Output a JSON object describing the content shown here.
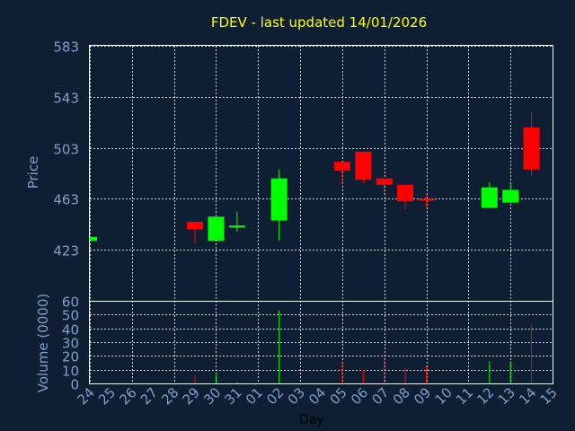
{
  "chart_data": {
    "type": "candlestick",
    "title": "FDEV - last updated 14/01/2026",
    "xlabel": "Day",
    "ylabel_price": "Price",
    "ylabel_volume": "Volume (0000)",
    "days": [
      "24",
      "25",
      "26",
      "27",
      "28",
      "29",
      "30",
      "31",
      "01",
      "02",
      "03",
      "04",
      "05",
      "06",
      "07",
      "08",
      "09",
      "10",
      "11",
      "12",
      "13",
      "14",
      "15"
    ],
    "price_ylim": [
      383,
      583
    ],
    "price_ticks": [
      423,
      463,
      503,
      543,
      583
    ],
    "volume_ylim": [
      0,
      60
    ],
    "volume_ticks": [
      0,
      10,
      20,
      30,
      40,
      50,
      60
    ],
    "grid": true,
    "colors": {
      "up": "#00ff00",
      "down": "#ff0000",
      "grid": "#ffffff",
      "title": "#ffff00",
      "axis_text": "#7f9fc8",
      "background": "#0f1f33"
    },
    "candles": [
      {
        "day": "24",
        "open": 430,
        "close": 433,
        "high": 433,
        "low": 430,
        "volume": 0
      },
      {
        "day": "29",
        "open": 445,
        "close": 439,
        "high": 445,
        "low": 428,
        "volume": 6
      },
      {
        "day": "30",
        "open": 430,
        "close": 449,
        "high": 449,
        "low": 430,
        "volume": 6
      },
      {
        "day": "31",
        "open": 441,
        "close": 442,
        "high": 453,
        "low": 437,
        "volume": 1
      },
      {
        "day": "02",
        "open": 446,
        "close": 479,
        "high": 486,
        "low": 430,
        "volume": 53
      },
      {
        "day": "05",
        "open": 492,
        "close": 485,
        "high": 492,
        "low": 474,
        "volume": 16
      },
      {
        "day": "06",
        "open": 500,
        "close": 478,
        "high": 500,
        "low": 475,
        "volume": 10
      },
      {
        "day": "07",
        "open": 479,
        "close": 474,
        "high": 479,
        "low": 466,
        "volume": 21
      },
      {
        "day": "08",
        "open": 474,
        "close": 461,
        "high": 474,
        "low": 455,
        "volume": 11
      },
      {
        "day": "09",
        "open": 463,
        "close": 462,
        "high": 466,
        "low": 456,
        "volume": 13
      },
      {
        "day": "12",
        "open": 456,
        "close": 472,
        "high": 476,
        "low": 456,
        "volume": 16
      },
      {
        "day": "13",
        "open": 460,
        "close": 470,
        "high": 476,
        "low": 460,
        "volume": 16
      },
      {
        "day": "14",
        "open": 519,
        "close": 486,
        "high": 531,
        "low": 481,
        "volume": 43
      }
    ]
  }
}
